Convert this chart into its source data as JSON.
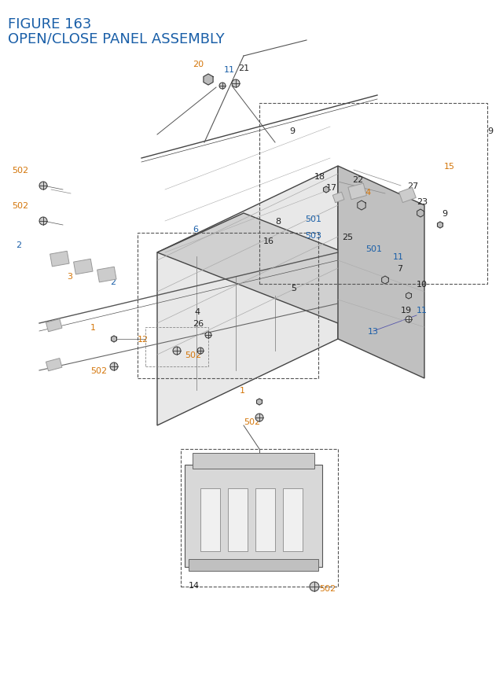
{
  "title_line1": "FIGURE 163",
  "title_line2": "OPEN/CLOSE PANEL ASSEMBLY",
  "title_color": "#1a3a6b",
  "title_fontsize": 13,
  "bg_color": "#ffffff",
  "label_color_blue": "#1a5fa8",
  "label_color_orange": "#d4760a",
  "label_color_black": "#222222",
  "figsize": [
    6.4,
    8.62
  ],
  "dpi": 100
}
